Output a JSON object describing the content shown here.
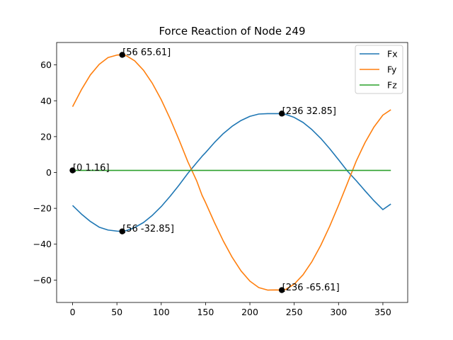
{
  "chart_data": {
    "type": "line",
    "title": "Force Reaction of Node 249",
    "xlabel": "",
    "ylabel": "",
    "xlim": [
      -18,
      378
    ],
    "ylim": [
      -72.5,
      72.5
    ],
    "xticks": [
      0,
      50,
      100,
      150,
      200,
      250,
      300,
      350
    ],
    "yticks": [
      -60,
      -40,
      -20,
      0,
      20,
      40,
      60
    ],
    "xtick_labels": [
      "0",
      "50",
      "100",
      "150",
      "200",
      "250",
      "300",
      "350"
    ],
    "ytick_labels": [
      "−60",
      "−40",
      "−20",
      "0",
      "20",
      "40",
      "60"
    ],
    "grid": false,
    "legend_position": "top-right",
    "series": [
      {
        "name": "Fx",
        "color": "#1f77b4",
        "x": [
          0,
          10,
          20,
          30,
          40,
          50,
          56,
          60,
          70,
          80,
          90,
          100,
          110,
          120,
          130,
          140,
          146,
          150,
          160,
          170,
          180,
          190,
          200,
          210,
          220,
          230,
          236,
          240,
          250,
          260,
          270,
          280,
          290,
          300,
          310,
          320,
          326,
          330,
          340,
          350,
          359
        ],
        "y": [
          -18.4,
          -23.2,
          -27.3,
          -30.5,
          -32.1,
          -32.7,
          -32.85,
          -32.5,
          -30.7,
          -27.9,
          -23.9,
          -19.0,
          -13.3,
          -7.1,
          -0.5,
          5.5,
          9.0,
          11.1,
          16.7,
          21.7,
          25.8,
          29.0,
          31.3,
          32.6,
          32.8,
          32.8,
          32.85,
          32.5,
          30.7,
          27.9,
          23.9,
          19.0,
          13.3,
          7.1,
          0.8,
          -4.6,
          -8.0,
          -10.3,
          -15.8,
          -20.7,
          -17.6
        ]
      },
      {
        "name": "Fy",
        "color": "#ff7f0e",
        "x": [
          0,
          10,
          20,
          30,
          40,
          50,
          56,
          60,
          70,
          80,
          90,
          100,
          110,
          120,
          130,
          140,
          146,
          150,
          160,
          170,
          180,
          190,
          200,
          210,
          220,
          230,
          236,
          240,
          250,
          260,
          270,
          280,
          290,
          300,
          310,
          320,
          326,
          330,
          340,
          350,
          359
        ],
        "y": [
          36.7,
          46.2,
          54.4,
          60.3,
          64.1,
          65.5,
          65.61,
          65.3,
          62.3,
          57.0,
          49.7,
          40.6,
          30.0,
          18.3,
          6.0,
          -4.7,
          -12.7,
          -16.8,
          -27.9,
          -38.2,
          -47.3,
          -54.9,
          -60.6,
          -64.2,
          -65.6,
          -65.5,
          -65.61,
          -65.3,
          -62.3,
          -57.0,
          -49.7,
          -40.6,
          -30.0,
          -18.3,
          -6.0,
          6.4,
          12.7,
          16.8,
          25.4,
          32.0,
          35.0
        ]
      },
      {
        "name": "Fz",
        "color": "#2ca02c",
        "x": [
          0,
          359
        ],
        "y": [
          1.16,
          1.16
        ]
      }
    ],
    "annotations": [
      {
        "x": 56,
        "y": 65.61,
        "label": "[56 65.61]"
      },
      {
        "x": 236,
        "y": 32.85,
        "label": "[236 32.85]"
      },
      {
        "x": 0,
        "y": 1.16,
        "label": "[0 1.16]"
      },
      {
        "x": 56,
        "y": -32.85,
        "label": "[56 -32.85]"
      },
      {
        "x": 236,
        "y": -65.61,
        "label": "[236 -65.61]"
      }
    ],
    "marker_color": "#000000"
  }
}
